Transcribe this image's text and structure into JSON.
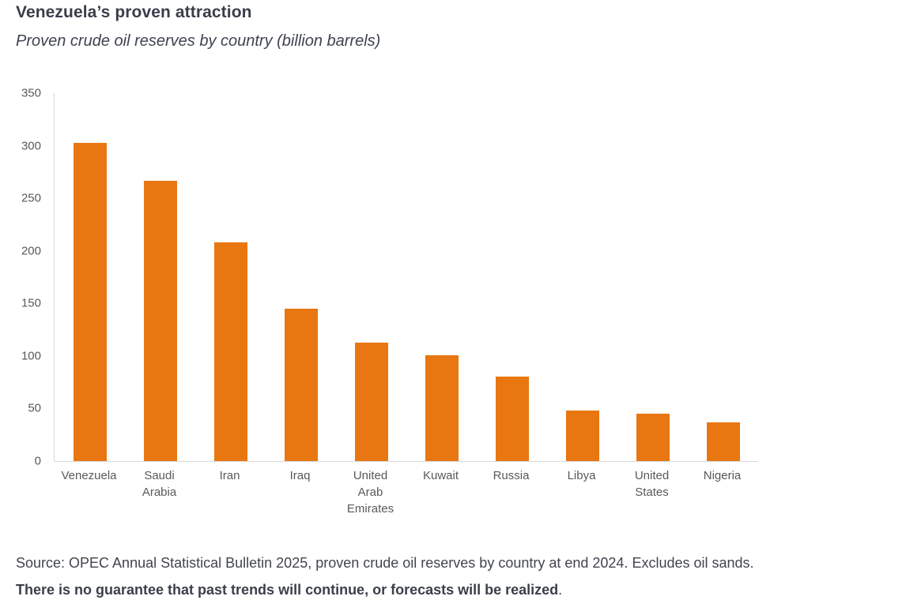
{
  "page": {
    "source_line": "Source: OPEC Annual Statistical Bulletin 2025, proven crude oil reserves by country at end 2024. Excludes oil sands.",
    "disclaimer_bold": "There is no guarantee that past trends will continue, or forecasts will be realized",
    "disclaimer_suffix": "."
  },
  "chart_data": {
    "type": "bar",
    "title": "Venezuela’s proven attraction",
    "subtitle": "Proven crude oil reserves by country (billion barrels)",
    "unit": "billion barrels",
    "categories": [
      "Venezuela",
      "Saudi Arabia",
      "Iran",
      "Iraq",
      "United Arab Emirates",
      "Kuwait",
      "Russia",
      "Libya",
      "United States",
      "Nigeria"
    ],
    "category_label_lines": [
      [
        "Venezuela"
      ],
      [
        "Saudi",
        "Arabia"
      ],
      [
        "Iran"
      ],
      [
        "Iraq"
      ],
      [
        "United",
        "Arab",
        "Emirates"
      ],
      [
        "Kuwait"
      ],
      [
        "Russia"
      ],
      [
        "Libya"
      ],
      [
        "United",
        "States"
      ],
      [
        "Nigeria"
      ]
    ],
    "values": [
      303,
      267,
      208,
      145,
      113,
      101,
      80,
      48,
      45,
      37
    ],
    "xlabel": "",
    "ylabel": "",
    "ylim": [
      0,
      350
    ],
    "yticks": [
      0,
      50,
      100,
      150,
      200,
      250,
      300,
      350
    ],
    "grid": false,
    "legend": false,
    "colors": {
      "bar": "#e87712",
      "axis_line": "#d9d9d9",
      "tick_label": "#595959",
      "title_text": "#383e4a",
      "footer_text": "#42454e"
    }
  }
}
